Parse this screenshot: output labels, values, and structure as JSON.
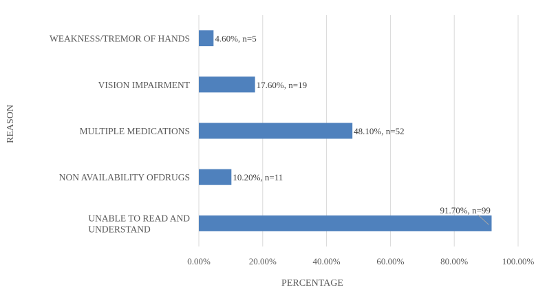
{
  "chart_data": {
    "type": "bar",
    "orientation": "horizontal",
    "categories": [
      "WEAKNESS/TREMOR OF HANDS",
      "VISION IMPAIRMENT",
      "MULTIPLE MEDICATIONS",
      "NON AVAILABILITY OFDRUGS",
      "UNABLE TO READ AND UNDERSTAND"
    ],
    "values": [
      4.6,
      17.6,
      48.1,
      10.2,
      91.7
    ],
    "data_labels": [
      "4.60%, n=5",
      "17.60%, n=19",
      "48.10%, n=52",
      "10.20%, n=11",
      "91.70%, n=99"
    ],
    "xlabel": "PERCENTAGE",
    "ylabel": "REASON",
    "xlim": [
      0,
      100
    ],
    "x_ticks": [
      "0.00%",
      "20.00%",
      "40.00%",
      "60.00%",
      "80.00%",
      "100.00%"
    ],
    "grid": true,
    "legend": "none",
    "bar_color": "#4f81bd"
  }
}
